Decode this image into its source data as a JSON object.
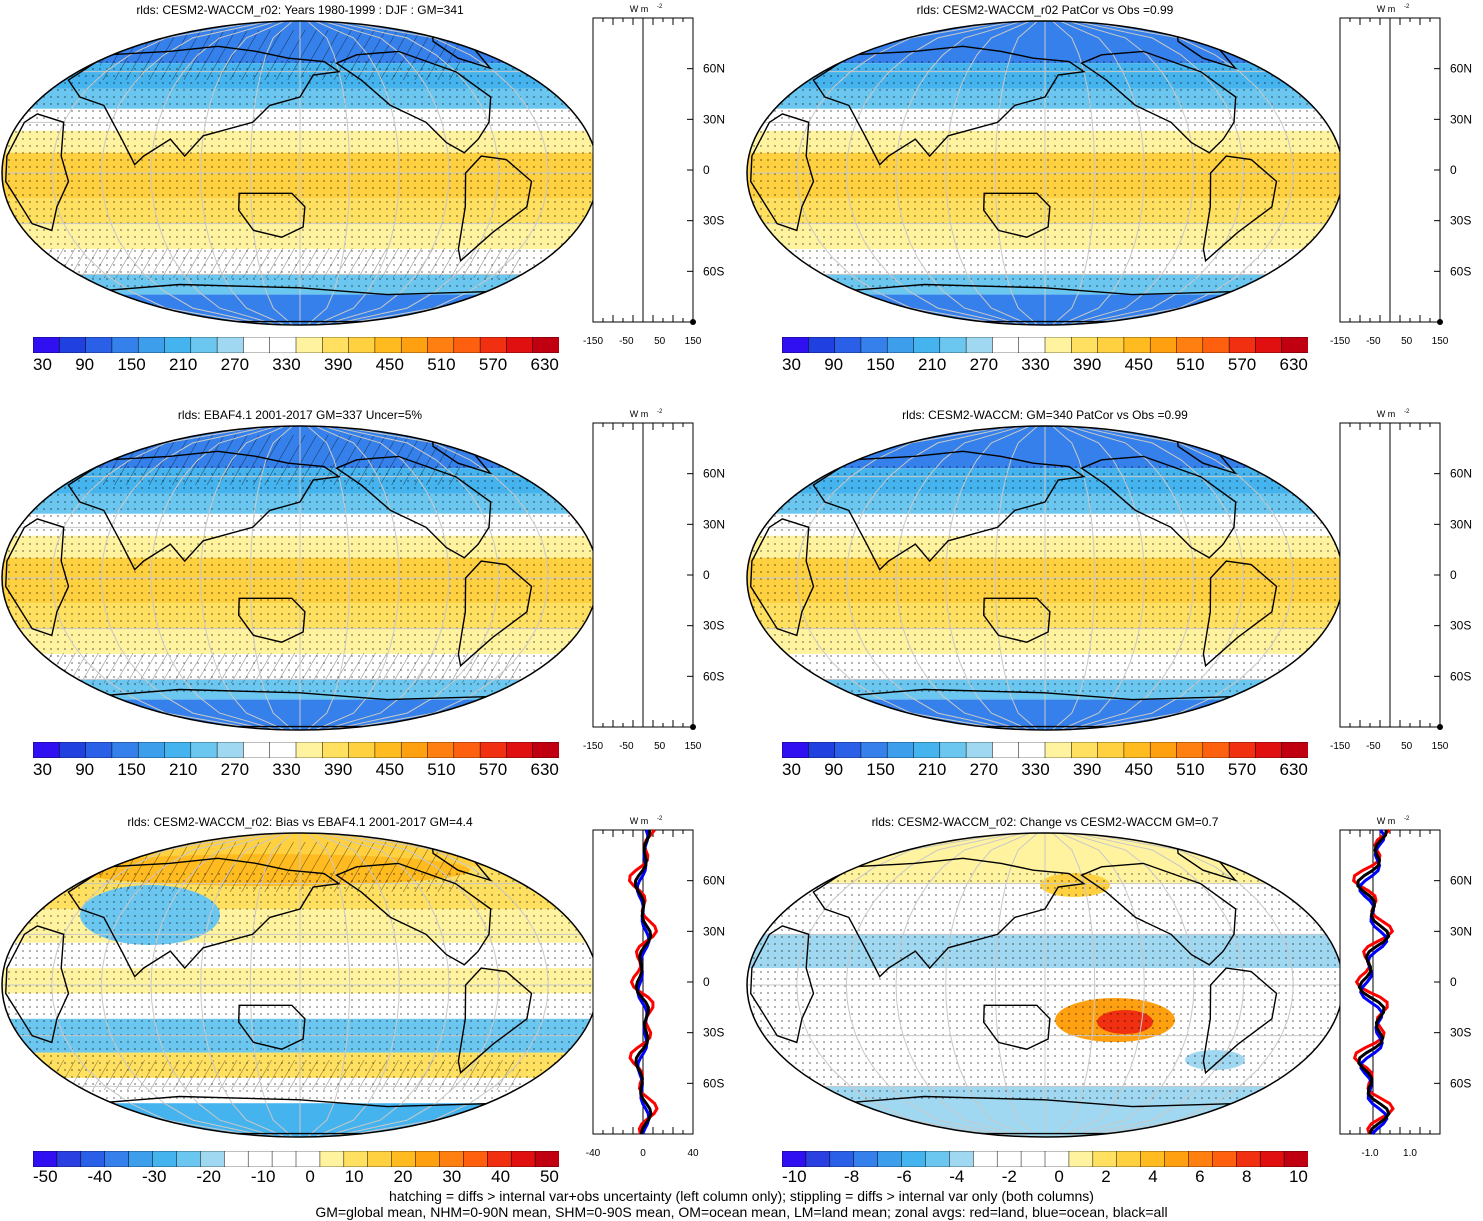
{
  "panels": [
    {
      "title": "rlds: CESM2-WACCM_r02: Years 1980-1999 : DJF : GM=341",
      "type": "abs",
      "cbar": [
        "30",
        "90",
        "150",
        "210",
        "270",
        "330",
        "390",
        "450",
        "510",
        "570",
        "630"
      ],
      "zonal_ticks": [
        "-150",
        "-50",
        "50",
        "150"
      ],
      "hatch": true
    },
    {
      "title": "rlds: CESM2-WACCM_r02 PatCor vs Obs =0.99",
      "type": "abs",
      "cbar": [
        "30",
        "90",
        "150",
        "210",
        "270",
        "330",
        "390",
        "450",
        "510",
        "570",
        "630"
      ],
      "zonal_ticks": [
        "-150",
        "-50",
        "50",
        "150"
      ],
      "hatch": false
    },
    {
      "title": "rlds: EBAF4.1 2001-2017 GM=337 Uncer=5%",
      "type": "abs",
      "cbar": [
        "30",
        "90",
        "150",
        "210",
        "270",
        "330",
        "390",
        "450",
        "510",
        "570",
        "630"
      ],
      "zonal_ticks": [
        "-150",
        "-50",
        "50",
        "150"
      ],
      "hatch": true
    },
    {
      "title": "rlds: CESM2-WACCM: GM=340 PatCor vs Obs =0.99",
      "type": "abs",
      "cbar": [
        "30",
        "90",
        "150",
        "210",
        "270",
        "330",
        "390",
        "450",
        "510",
        "570",
        "630"
      ],
      "zonal_ticks": [
        "-150",
        "-50",
        "50",
        "150"
      ],
      "hatch": false
    },
    {
      "title": "rlds: CESM2-WACCM_r02: Bias vs EBAF4.1 2001-2017 GM=4.4",
      "type": "bias",
      "cbar": [
        "-50",
        "-40",
        "-30",
        "-20",
        "-10",
        "0",
        "10",
        "20",
        "30",
        "40",
        "50"
      ],
      "zonal_ticks": [
        "-40",
        "0",
        "40"
      ],
      "hatch": true
    },
    {
      "title": "rlds: CESM2-WACCM_r02: Change vs CESM2-WACCM GM=0.7",
      "type": "change",
      "cbar": [
        "-10",
        "-8",
        "-6",
        "-4",
        "-2",
        "0",
        "2",
        "4",
        "6",
        "8",
        "10"
      ],
      "zonal_ticks": [
        "-1.0",
        "1.0"
      ],
      "hatch": false
    }
  ],
  "lat_labels": [
    "60N",
    "30N",
    "0",
    "30S",
    "60S"
  ],
  "units": "W m",
  "units_sup": "-2",
  "footer": {
    "line1": "hatching = diffs > internal var+obs uncertainty (left column only); stippling = diffs > internal var only (both columns)",
    "line2": "GM=global mean, NHM=0-90N mean, SHM=0-90S mean, OM=ocean mean, LM=land mean; zonal avgs: red=land, blue=ocean, black=all"
  },
  "colors": {
    "abs_scale": [
      "#3010f0",
      "#2040e0",
      "#2a60e8",
      "#3580ea",
      "#3d9eec",
      "#45b3ee",
      "#6cc7f0",
      "#9fd8f0",
      "#ffffff",
      "#ffffff",
      "#fff3a0",
      "#ffe060",
      "#ffd040",
      "#ffbb20",
      "#ffa010",
      "#ff8010",
      "#ff6010",
      "#f03010",
      "#e01010",
      "#c00010"
    ],
    "land": "#000000",
    "grid": "#c8c8c8"
  }
}
